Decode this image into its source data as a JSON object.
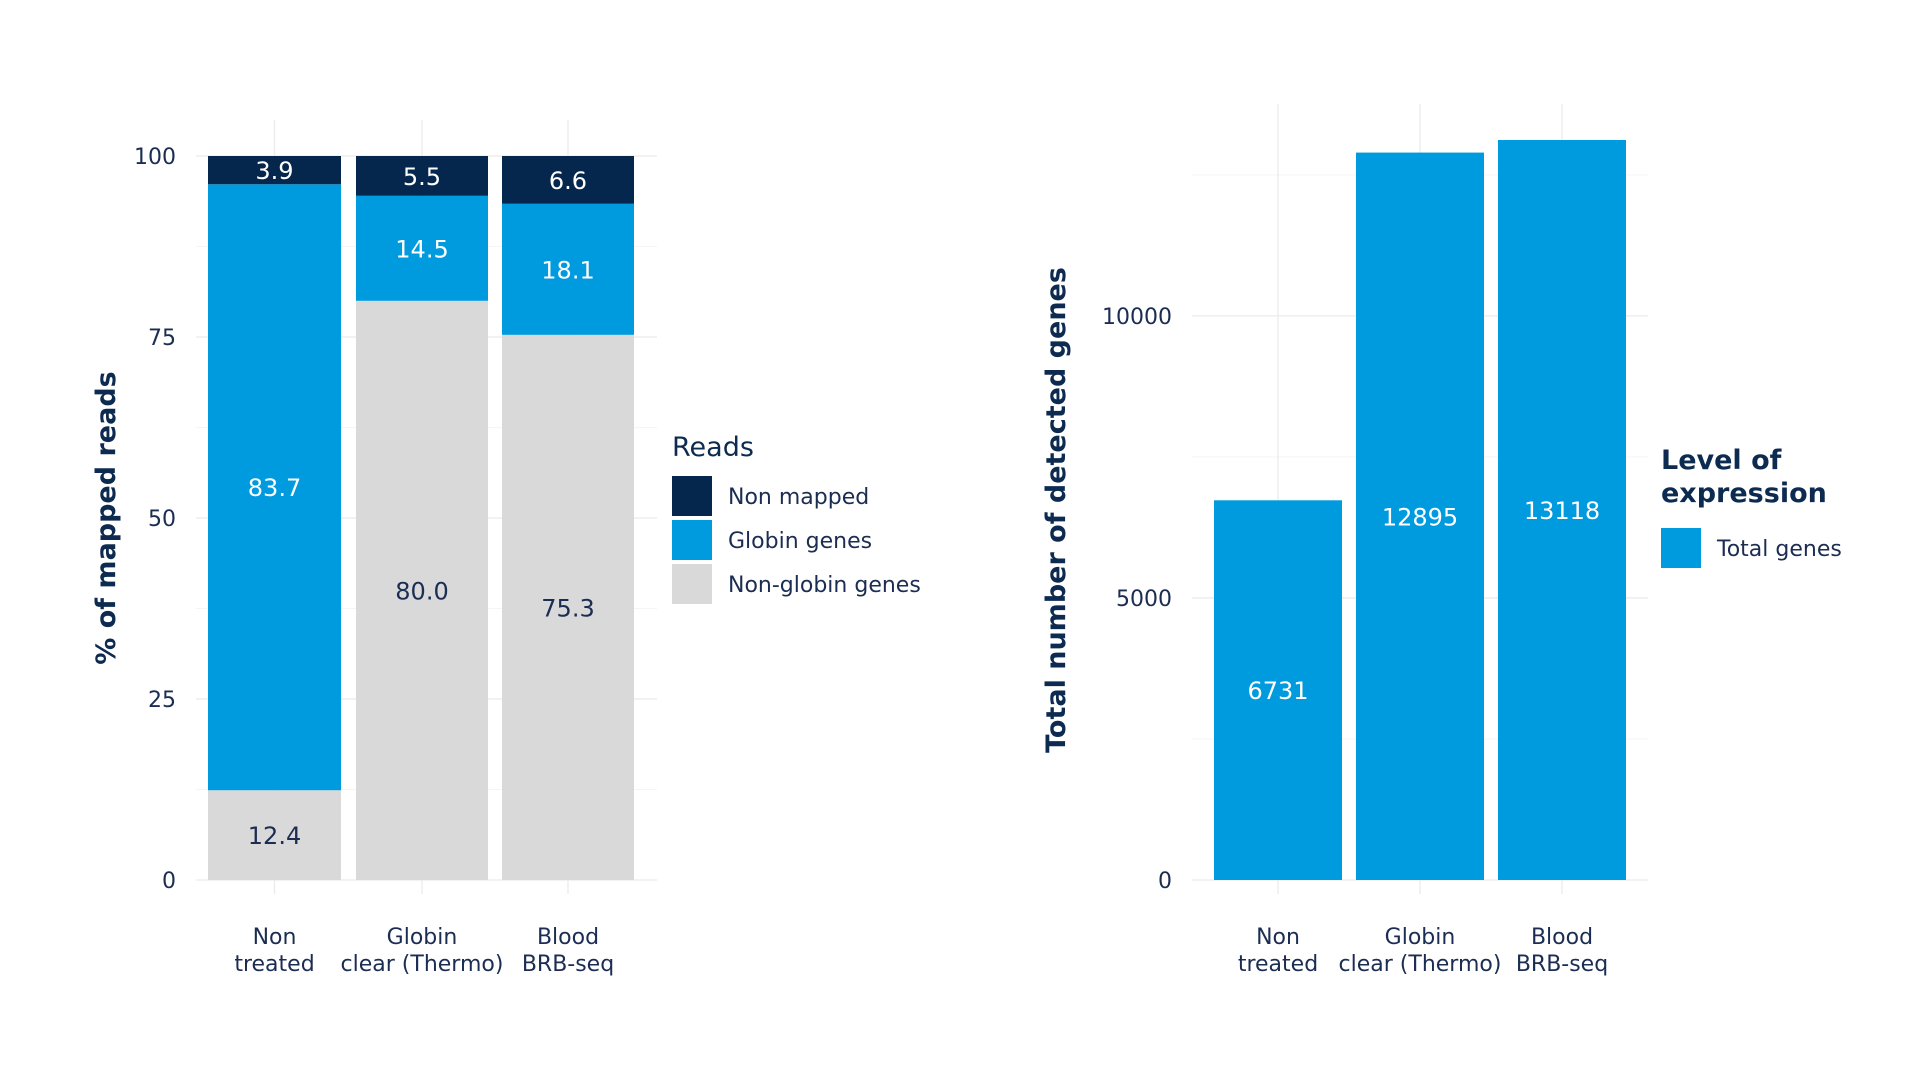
{
  "chart_data": [
    {
      "type": "bar",
      "stacked": true,
      "categories": [
        "Non treated",
        "Globin clear (Thermo)",
        "Blood BRB-seq"
      ],
      "category_lines": [
        [
          "Non",
          "treated"
        ],
        [
          "Globin",
          "clear (Thermo)"
        ],
        [
          "Blood",
          "BRB-seq"
        ]
      ],
      "series": [
        {
          "name": "Non-globin genes",
          "values": [
            12.4,
            80.0,
            75.3
          ],
          "labels": [
            "12.4",
            "80.0",
            "75.3"
          ],
          "color": "#d9d9d9",
          "label_color": "#1b2d52"
        },
        {
          "name": "Globin genes",
          "values": [
            83.7,
            14.5,
            18.1
          ],
          "labels": [
            "83.7",
            "14.5",
            "18.1"
          ],
          "color": "#009ade",
          "label_color": "#ffffff"
        },
        {
          "name": "Non mapped",
          "values": [
            3.9,
            5.5,
            6.6
          ],
          "labels": [
            "3.9",
            "5.5",
            "6.6"
          ],
          "color": "#05274e",
          "label_color": "#ffffff"
        }
      ],
      "ylabel": "% of mapped reads",
      "ylim": [
        0,
        100
      ],
      "yticks": [
        0,
        25,
        50,
        75,
        100
      ],
      "grid": true,
      "legend": {
        "title": "Reads",
        "placement": "right",
        "order": [
          "Non mapped",
          "Globin genes",
          "Non-globin genes"
        ]
      }
    },
    {
      "type": "bar",
      "categories": [
        "Non treated",
        "Globin clear (Thermo)",
        "Blood BRB-seq"
      ],
      "category_lines": [
        [
          "Non",
          "treated"
        ],
        [
          "Globin",
          "clear (Thermo)"
        ],
        [
          "Blood",
          "BRB-seq"
        ]
      ],
      "series": [
        {
          "name": "Total genes",
          "values": [
            6731,
            12895,
            13118
          ],
          "labels": [
            "6731",
            "12895",
            "13118"
          ],
          "color": "#009ade",
          "label_color": "#ffffff"
        }
      ],
      "ylabel": "Total number of detected genes",
      "ylim": [
        0,
        13118
      ],
      "yticks": [
        0,
        5000,
        10000
      ],
      "grid": true,
      "legend": {
        "title_lines": [
          "Level of",
          "expression"
        ],
        "placement": "right",
        "order": [
          "Total genes"
        ]
      }
    }
  ]
}
